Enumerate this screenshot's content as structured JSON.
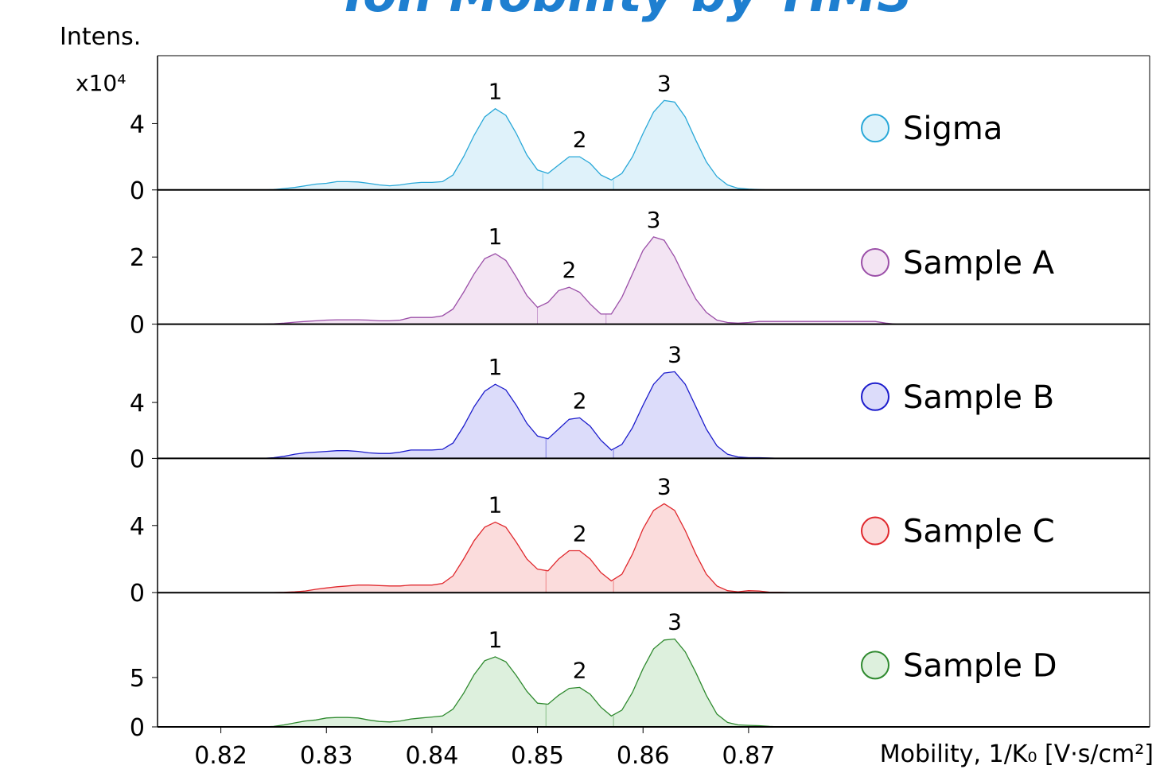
{
  "title": "Ion Mobility by TIMS",
  "y_label": "Intens.",
  "y_scale": "x10⁴",
  "chart_data": [
    {
      "type": "area",
      "xlim": [
        0.814,
        0.908
      ],
      "ylim": [
        0,
        8.1
      ],
      "yticks": [
        0,
        4
      ],
      "x": [
        0.824,
        0.825,
        0.826,
        0.827,
        0.828,
        0.829,
        0.83,
        0.831,
        0.832,
        0.833,
        0.834,
        0.835,
        0.836,
        0.837,
        0.838,
        0.839,
        0.84,
        0.841,
        0.842,
        0.843,
        0.844,
        0.845,
        0.846,
        0.847,
        0.848,
        0.849,
        0.85,
        0.851,
        0.852,
        0.853,
        0.854,
        0.855,
        0.856,
        0.857,
        0.858,
        0.859,
        0.86,
        0.861,
        0.862,
        0.863,
        0.864,
        0.865,
        0.866,
        0.867,
        0.868,
        0.869,
        0.87,
        0.871,
        0.872,
        0.873,
        0.874,
        0.875,
        0.876,
        0.877,
        0.878,
        0.879,
        0.88,
        0.881,
        0.882,
        0.883,
        0.884
      ],
      "series": [
        {
          "name": "Sigma",
          "color": "#29a8d8",
          "fill": "#dff2fa",
          "values": [
            0,
            0.02,
            0.08,
            0.15,
            0.25,
            0.35,
            0.4,
            0.5,
            0.5,
            0.48,
            0.4,
            0.3,
            0.25,
            0.3,
            0.4,
            0.45,
            0.45,
            0.5,
            0.9,
            2.0,
            3.3,
            4.4,
            4.9,
            4.5,
            3.4,
            2.1,
            1.2,
            1.0,
            1.5,
            2.0,
            2.0,
            1.6,
            0.9,
            0.6,
            1.0,
            2.0,
            3.4,
            4.7,
            5.4,
            5.3,
            4.4,
            3.0,
            1.7,
            0.8,
            0.3,
            0.1,
            0.05,
            0.02,
            0,
            0,
            0,
            0,
            0,
            0,
            0,
            0,
            0,
            0,
            0,
            0,
            0
          ]
        }
      ],
      "peak_bounds": [
        0.8505,
        0.8572
      ],
      "annotations": [
        {
          "text": "1",
          "x": 0.846
        },
        {
          "text": "2",
          "x": 0.854
        },
        {
          "text": "3",
          "x": 0.862
        }
      ]
    },
    {
      "type": "area",
      "xlim": [
        0.814,
        0.908
      ],
      "ylim": [
        0,
        4
      ],
      "yticks": [
        0,
        2
      ],
      "x": [
        0.824,
        0.825,
        0.826,
        0.827,
        0.828,
        0.829,
        0.83,
        0.831,
        0.832,
        0.833,
        0.834,
        0.835,
        0.836,
        0.837,
        0.838,
        0.839,
        0.84,
        0.841,
        0.842,
        0.843,
        0.844,
        0.845,
        0.846,
        0.847,
        0.848,
        0.849,
        0.85,
        0.851,
        0.852,
        0.853,
        0.854,
        0.855,
        0.856,
        0.857,
        0.858,
        0.859,
        0.86,
        0.861,
        0.862,
        0.863,
        0.864,
        0.865,
        0.866,
        0.867,
        0.868,
        0.869,
        0.87,
        0.871,
        0.872,
        0.873,
        0.874,
        0.875,
        0.876,
        0.877,
        0.878,
        0.879,
        0.88,
        0.881,
        0.882,
        0.883,
        0.884
      ],
      "series": [
        {
          "name": "Sample A",
          "color": "#9b4fa8",
          "fill": "#f3e4f3",
          "values": [
            0,
            0.01,
            0.03,
            0.06,
            0.08,
            0.1,
            0.12,
            0.13,
            0.13,
            0.13,
            0.12,
            0.1,
            0.1,
            0.12,
            0.2,
            0.2,
            0.2,
            0.25,
            0.45,
            0.95,
            1.5,
            1.95,
            2.1,
            1.9,
            1.4,
            0.85,
            0.5,
            0.65,
            1.0,
            1.1,
            0.95,
            0.6,
            0.3,
            0.3,
            0.8,
            1.5,
            2.2,
            2.6,
            2.5,
            2.0,
            1.35,
            0.75,
            0.35,
            0.12,
            0.05,
            0.03,
            0.05,
            0.08,
            0.08,
            0.08,
            0.08,
            0.08,
            0.08,
            0.08,
            0.08,
            0.08,
            0.08,
            0.08,
            0.08,
            0.03,
            0
          ]
        }
      ],
      "peak_bounds": [
        0.85,
        0.8565
      ],
      "annotations": [
        {
          "text": "1",
          "x": 0.846
        },
        {
          "text": "2",
          "x": 0.853
        },
        {
          "text": "3",
          "x": 0.861
        }
      ]
    },
    {
      "type": "area",
      "xlim": [
        0.814,
        0.908
      ],
      "ylim": [
        0,
        9.6
      ],
      "yticks": [
        0,
        4
      ],
      "x": [
        0.824,
        0.825,
        0.826,
        0.827,
        0.828,
        0.829,
        0.83,
        0.831,
        0.832,
        0.833,
        0.834,
        0.835,
        0.836,
        0.837,
        0.838,
        0.839,
        0.84,
        0.841,
        0.842,
        0.843,
        0.844,
        0.845,
        0.846,
        0.847,
        0.848,
        0.849,
        0.85,
        0.851,
        0.852,
        0.853,
        0.854,
        0.855,
        0.856,
        0.857,
        0.858,
        0.859,
        0.86,
        0.861,
        0.862,
        0.863,
        0.864,
        0.865,
        0.866,
        0.867,
        0.868,
        0.869,
        0.87,
        0.871,
        0.872,
        0.873,
        0.874,
        0.875,
        0.876,
        0.877,
        0.878,
        0.879,
        0.88,
        0.881,
        0.882,
        0.883,
        0.884
      ],
      "series": [
        {
          "name": "Sample B",
          "color": "#1c1ccc",
          "fill": "#dcdcfa",
          "values": [
            0,
            0.05,
            0.15,
            0.3,
            0.4,
            0.45,
            0.5,
            0.55,
            0.55,
            0.5,
            0.4,
            0.35,
            0.35,
            0.45,
            0.6,
            0.6,
            0.6,
            0.65,
            1.1,
            2.3,
            3.7,
            4.8,
            5.3,
            4.9,
            3.8,
            2.5,
            1.6,
            1.4,
            2.1,
            2.8,
            2.9,
            2.3,
            1.3,
            0.6,
            1.0,
            2.2,
            3.8,
            5.3,
            6.1,
            6.2,
            5.3,
            3.7,
            2.1,
            0.9,
            0.3,
            0.1,
            0.05,
            0.05,
            0.03,
            0,
            0,
            0,
            0,
            0,
            0,
            0,
            0,
            0,
            0,
            0,
            0
          ]
        }
      ],
      "peak_bounds": [
        0.8508,
        0.8572
      ],
      "annotations": [
        {
          "text": "1",
          "x": 0.846
        },
        {
          "text": "2",
          "x": 0.854
        },
        {
          "text": "3",
          "x": 0.863
        }
      ]
    },
    {
      "type": "area",
      "xlim": [
        0.814,
        0.908
      ],
      "ylim": [
        0,
        8
      ],
      "yticks": [
        0,
        4
      ],
      "x": [
        0.824,
        0.825,
        0.826,
        0.827,
        0.828,
        0.829,
        0.83,
        0.831,
        0.832,
        0.833,
        0.834,
        0.835,
        0.836,
        0.837,
        0.838,
        0.839,
        0.84,
        0.841,
        0.842,
        0.843,
        0.844,
        0.845,
        0.846,
        0.847,
        0.848,
        0.849,
        0.85,
        0.851,
        0.852,
        0.853,
        0.854,
        0.855,
        0.856,
        0.857,
        0.858,
        0.859,
        0.86,
        0.861,
        0.862,
        0.863,
        0.864,
        0.865,
        0.866,
        0.867,
        0.868,
        0.869,
        0.87,
        0.871,
        0.872,
        0.873,
        0.874,
        0.875,
        0.876,
        0.877,
        0.878,
        0.879,
        0.88,
        0.881,
        0.882,
        0.883,
        0.884
      ],
      "series": [
        {
          "name": "Sample C",
          "color": "#e0282d",
          "fill": "#fbdcdc",
          "values": [
            0,
            0,
            0.02,
            0.05,
            0.1,
            0.2,
            0.28,
            0.35,
            0.4,
            0.45,
            0.45,
            0.42,
            0.4,
            0.4,
            0.45,
            0.45,
            0.45,
            0.55,
            1.0,
            2.0,
            3.1,
            3.9,
            4.2,
            3.9,
            3.0,
            2.0,
            1.4,
            1.3,
            2.0,
            2.5,
            2.5,
            2.0,
            1.2,
            0.7,
            1.1,
            2.3,
            3.8,
            4.9,
            5.3,
            4.9,
            3.7,
            2.3,
            1.1,
            0.4,
            0.12,
            0.05,
            0.12,
            0.1,
            0.03,
            0.02,
            0,
            0,
            0,
            0,
            0,
            0,
            0,
            0,
            0,
            0,
            0
          ]
        }
      ],
      "peak_bounds": [
        0.8508,
        0.8572
      ],
      "annotations": [
        {
          "text": "1",
          "x": 0.846
        },
        {
          "text": "2",
          "x": 0.854
        },
        {
          "text": "3",
          "x": 0.862
        }
      ]
    },
    {
      "type": "area",
      "xlim": [
        0.814,
        0.908
      ],
      "ylim": [
        0,
        13.6
      ],
      "yticks": [
        0,
        5
      ],
      "xticks": [
        0.82,
        0.83,
        0.84,
        0.85,
        0.86,
        0.87
      ],
      "x_label": "Mobility, 1/K₀ [V·s/cm²]",
      "x": [
        0.824,
        0.825,
        0.826,
        0.827,
        0.828,
        0.829,
        0.83,
        0.831,
        0.832,
        0.833,
        0.834,
        0.835,
        0.836,
        0.837,
        0.838,
        0.839,
        0.84,
        0.841,
        0.842,
        0.843,
        0.844,
        0.845,
        0.846,
        0.847,
        0.848,
        0.849,
        0.85,
        0.851,
        0.852,
        0.853,
        0.854,
        0.855,
        0.856,
        0.857,
        0.858,
        0.859,
        0.86,
        0.861,
        0.862,
        0.863,
        0.864,
        0.865,
        0.866,
        0.867,
        0.868,
        0.869,
        0.87,
        0.871,
        0.872,
        0.873,
        0.874,
        0.875,
        0.876,
        0.877,
        0.878,
        0.879,
        0.88,
        0.881,
        0.882,
        0.883,
        0.884
      ],
      "series": [
        {
          "name": "Sample D",
          "color": "#2f8a2f",
          "fill": "#ddf0dd",
          "values": [
            0,
            0.05,
            0.2,
            0.4,
            0.6,
            0.7,
            0.9,
            0.95,
            0.95,
            0.9,
            0.7,
            0.55,
            0.5,
            0.6,
            0.8,
            0.9,
            1.0,
            1.1,
            1.8,
            3.4,
            5.3,
            6.7,
            7.1,
            6.6,
            5.2,
            3.6,
            2.4,
            2.3,
            3.2,
            3.9,
            4.0,
            3.3,
            2.0,
            1.1,
            1.7,
            3.5,
            5.9,
            7.9,
            8.8,
            8.9,
            7.6,
            5.5,
            3.2,
            1.3,
            0.45,
            0.2,
            0.15,
            0.12,
            0.05,
            0,
            0,
            0,
            0,
            0,
            0,
            0,
            0,
            0,
            0,
            0,
            0
          ]
        }
      ],
      "peak_bounds": [
        0.8508,
        0.8572
      ],
      "annotations": [
        {
          "text": "1",
          "x": 0.846
        },
        {
          "text": "2",
          "x": 0.854
        },
        {
          "text": "3",
          "x": 0.863
        }
      ]
    }
  ]
}
